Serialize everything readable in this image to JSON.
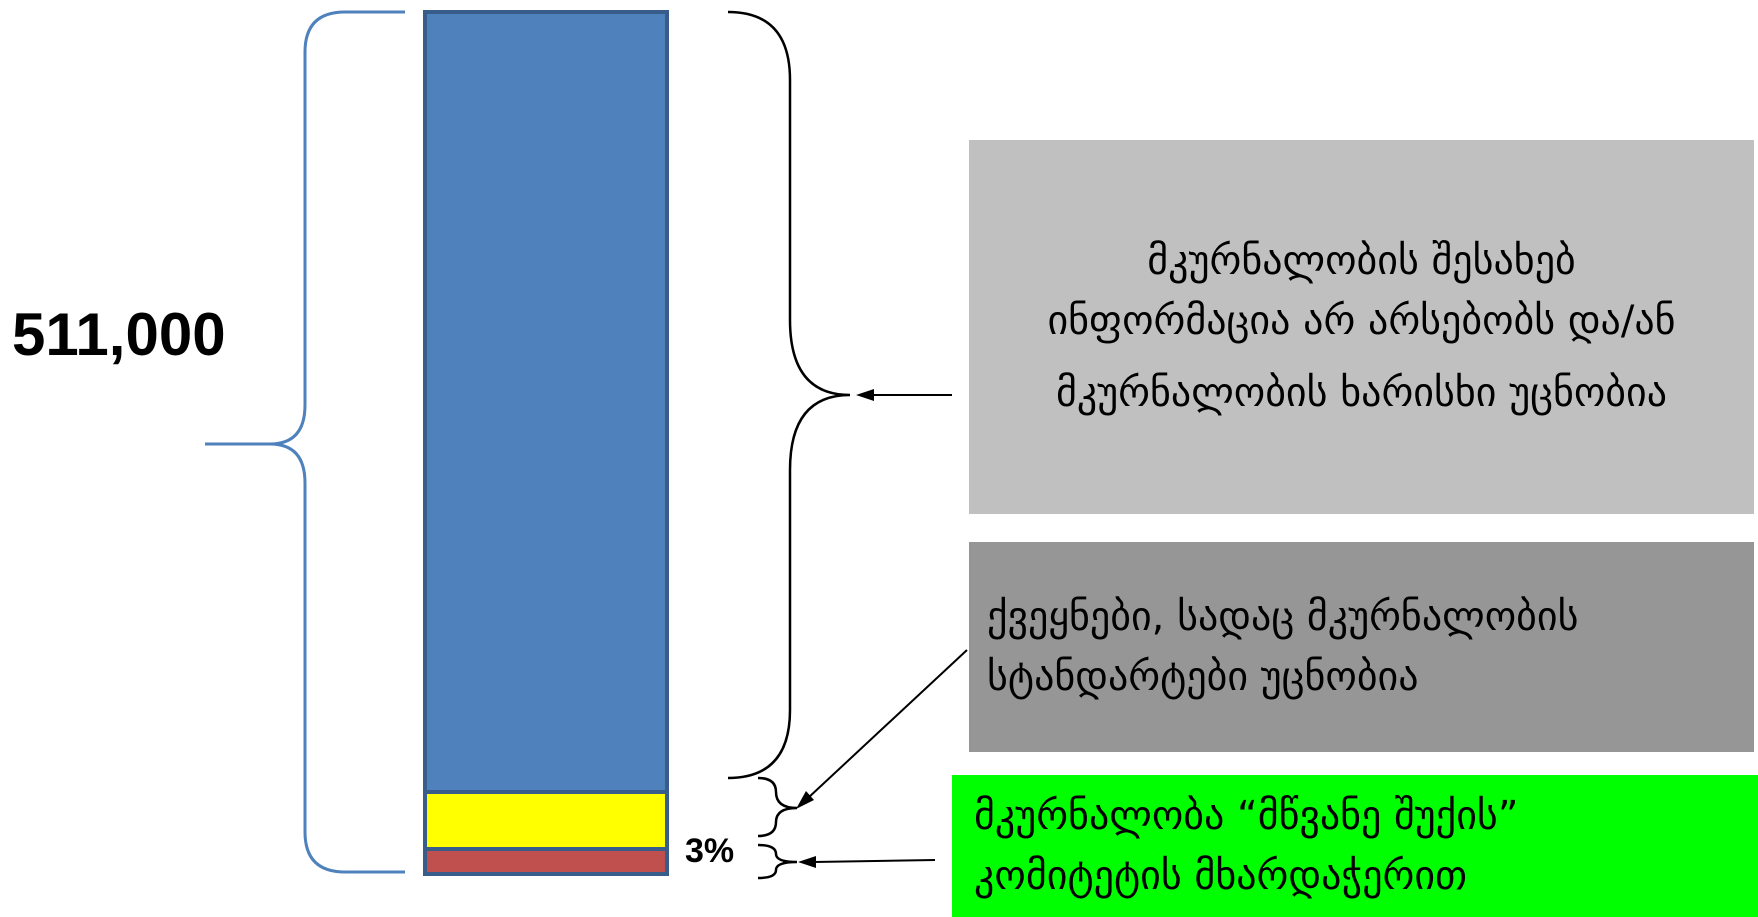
{
  "total_label": "511,000",
  "percent_label": "3%",
  "colors": {
    "bar_main": "#4f81bd",
    "bar_yellow": "#ffff00",
    "bar_red": "#c0504d",
    "bar_border": "#385d8a",
    "brace_left": "#4f81bd",
    "brace_right": "#000000",
    "box_light_gray": "#c0c0c0",
    "box_dark_gray": "#969696",
    "box_green": "#00ff00"
  },
  "boxes": {
    "unknown_info": {
      "line1": "მკურნალობის შესახებ ინფორმაცია არ არსებობს და/ან",
      "line2": "მკურნალობის ხარისხი უცნობია"
    },
    "unknown_standards": {
      "text": "ქვეყნები, სადაც მკურნალობის სტანდარტები უცნობია"
    },
    "green_light": {
      "text": "მკურნალობა “მწვანე შუქის” კომიტეტის მხარდაჭერით"
    }
  }
}
